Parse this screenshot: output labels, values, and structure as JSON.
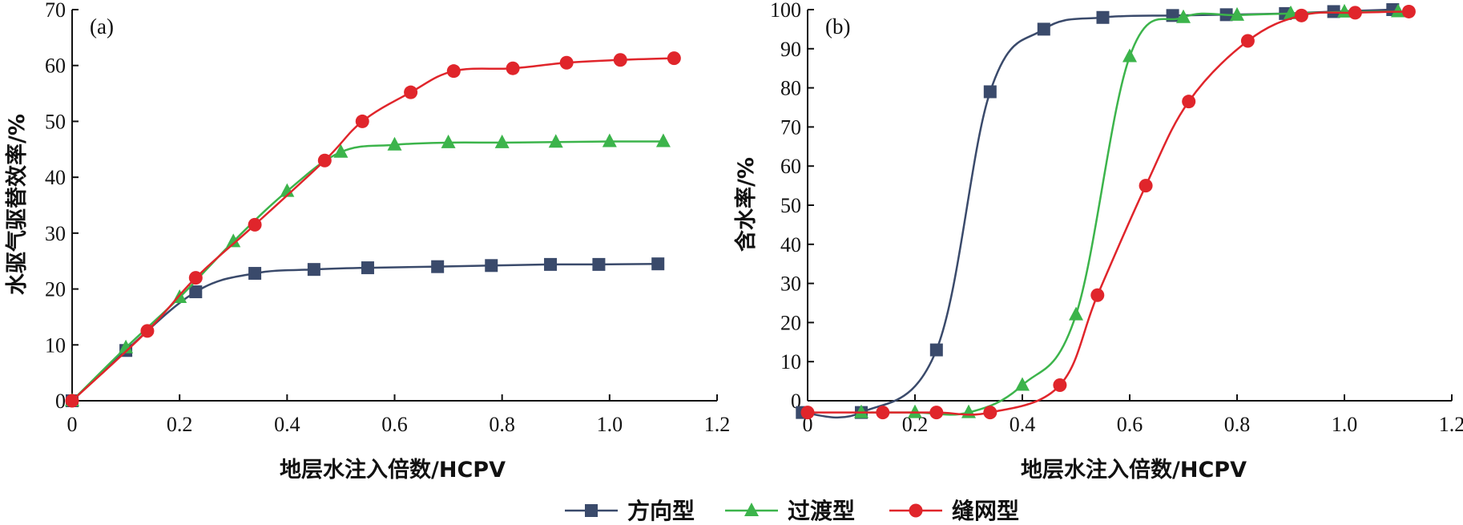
{
  "figure": {
    "xlabel": "地层水注入倍数/HCPV",
    "legend": [
      {
        "name": "方向型",
        "color": "#3a4a6b",
        "marker": "square"
      },
      {
        "name": "过渡型",
        "color": "#3cb44b",
        "marker": "triangle"
      },
      {
        "name": "缝网型",
        "color": "#e0252b",
        "marker": "circle"
      }
    ]
  },
  "chart_data": [
    {
      "type": "line",
      "panel_label": "(a)",
      "xlabel": "地层水注入倍数/HCPV",
      "ylabel": "水驱气驱替效率/%",
      "xlim": [
        0,
        1.2
      ],
      "ylim": [
        0,
        70
      ],
      "xticks": [
        "0",
        "0.2",
        "0.4",
        "0.6",
        "0.8",
        "1.0",
        "1.2"
      ],
      "yticks": [
        "0",
        "10",
        "20",
        "30",
        "40",
        "50",
        "60",
        "70"
      ],
      "series": [
        {
          "name": "方向型",
          "x": [
            0,
            0.1,
            0.23,
            0.34,
            0.45,
            0.55,
            0.68,
            0.78,
            0.89,
            0.98,
            1.09
          ],
          "y": [
            0,
            9,
            19.5,
            22.8,
            23.5,
            23.8,
            24,
            24.2,
            24.4,
            24.4,
            24.5
          ]
        },
        {
          "name": "过渡型",
          "x": [
            0,
            0.1,
            0.2,
            0.3,
            0.4,
            0.5,
            0.6,
            0.7,
            0.8,
            0.9,
            1.0,
            1.1
          ],
          "y": [
            0,
            9.5,
            18.5,
            28.5,
            37.5,
            44.5,
            45.8,
            46.2,
            46.2,
            46.3,
            46.4,
            46.4
          ]
        },
        {
          "name": "缝网型",
          "x": [
            0,
            0.14,
            0.23,
            0.34,
            0.47,
            0.54,
            0.63,
            0.71,
            0.82,
            0.92,
            1.02,
            1.12
          ],
          "y": [
            0,
            12.5,
            22,
            31.5,
            43,
            50,
            55.2,
            59,
            59.5,
            60.5,
            61,
            61.3
          ]
        }
      ]
    },
    {
      "type": "line",
      "panel_label": "(b)",
      "xlabel": "地层水注入倍数/HCPV",
      "ylabel": "含水率/%",
      "xlim": [
        0,
        1.2
      ],
      "ylim": [
        0,
        100
      ],
      "xticks": [
        "0",
        "0.2",
        "0.4",
        "0.6",
        "0.8",
        "1.0",
        "1.2"
      ],
      "yticks": [
        "0",
        "10",
        "20",
        "30",
        "40",
        "50",
        "60",
        "70",
        "80",
        "90",
        "100"
      ],
      "series": [
        {
          "name": "方向型",
          "x": [
            -0.01,
            0.1,
            0.24,
            0.34,
            0.44,
            0.55,
            0.68,
            0.78,
            0.89,
            0.98,
            1.09
          ],
          "y": [
            -3,
            -3,
            13,
            79,
            95,
            98,
            98.5,
            98.7,
            99,
            99.5,
            100
          ]
        },
        {
          "name": "过渡型",
          "x": [
            0.1,
            0.2,
            0.3,
            0.4,
            0.5,
            0.6,
            0.7,
            0.8,
            0.9,
            1.0,
            1.1
          ],
          "y": [
            -3,
            -3,
            -3,
            4,
            22,
            88,
            98,
            98.6,
            99,
            99.4,
            99.5
          ]
        },
        {
          "name": "缝网型",
          "x": [
            0,
            0.14,
            0.24,
            0.34,
            0.47,
            0.54,
            0.63,
            0.71,
            0.82,
            0.92,
            1.02,
            1.12
          ],
          "y": [
            -3,
            -3,
            -3,
            -3,
            4,
            27,
            55,
            76.5,
            92,
            98.5,
            99.2,
            99.5
          ]
        }
      ]
    }
  ]
}
